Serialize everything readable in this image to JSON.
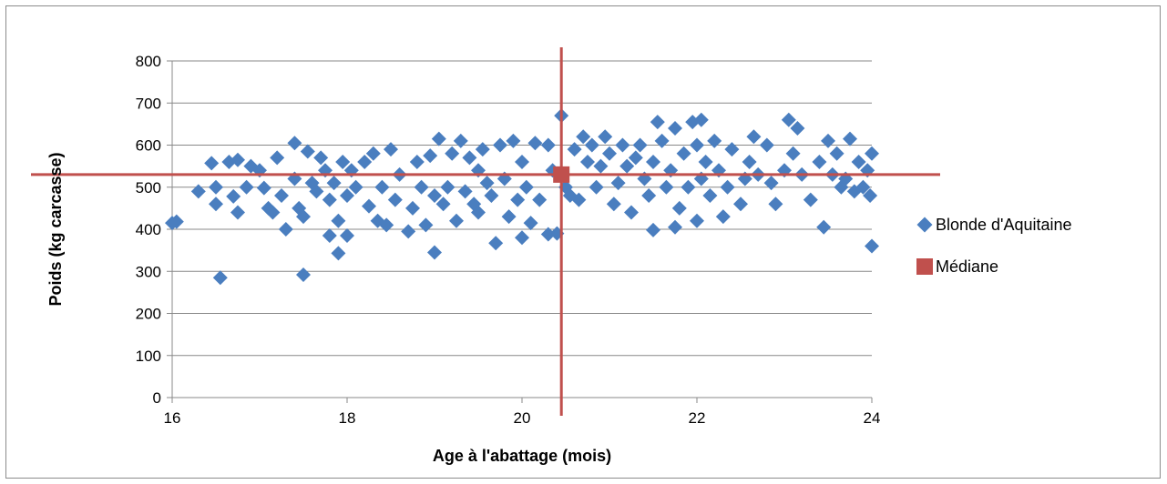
{
  "chart_data": {
    "type": "scatter",
    "title": "",
    "xlabel": "Age à l'abattage (mois)",
    "ylabel": "Poids (kg carcasse)",
    "xlim": [
      16,
      24
    ],
    "ylim": [
      0,
      800
    ],
    "x_ticks": [
      16,
      18,
      20,
      22,
      24
    ],
    "y_ticks": [
      0,
      100,
      200,
      300,
      400,
      500,
      600,
      700,
      800
    ],
    "grid": "horizontal",
    "legend_position": "right",
    "series": [
      {
        "name": "Blonde d'Aquitaine",
        "color": "#4a7ebf",
        "marker": "diamond",
        "points": [
          [
            16.0,
            415
          ],
          [
            16.05,
            418
          ],
          [
            16.3,
            490
          ],
          [
            16.45,
            557
          ],
          [
            16.5,
            500
          ],
          [
            16.5,
            460
          ],
          [
            16.55,
            285
          ],
          [
            16.65,
            560
          ],
          [
            16.7,
            478
          ],
          [
            16.75,
            565
          ],
          [
            16.75,
            440
          ],
          [
            16.85,
            500
          ],
          [
            16.9,
            550
          ],
          [
            17.0,
            540
          ],
          [
            17.05,
            498
          ],
          [
            17.1,
            450
          ],
          [
            17.15,
            440
          ],
          [
            17.2,
            570
          ],
          [
            17.25,
            480
          ],
          [
            17.3,
            400
          ],
          [
            17.4,
            520
          ],
          [
            17.4,
            605
          ],
          [
            17.45,
            450
          ],
          [
            17.5,
            430
          ],
          [
            17.5,
            292
          ],
          [
            17.55,
            585
          ],
          [
            17.6,
            510
          ],
          [
            17.65,
            490
          ],
          [
            17.7,
            570
          ],
          [
            17.75,
            540
          ],
          [
            17.8,
            385
          ],
          [
            17.8,
            470
          ],
          [
            17.85,
            510
          ],
          [
            17.9,
            420
          ],
          [
            17.9,
            343
          ],
          [
            17.95,
            560
          ],
          [
            18.0,
            480
          ],
          [
            18.0,
            385
          ],
          [
            18.05,
            540
          ],
          [
            18.1,
            500
          ],
          [
            18.2,
            560
          ],
          [
            18.25,
            455
          ],
          [
            18.3,
            580
          ],
          [
            18.35,
            420
          ],
          [
            18.4,
            500
          ],
          [
            18.45,
            410
          ],
          [
            18.5,
            590
          ],
          [
            18.55,
            470
          ],
          [
            18.6,
            530
          ],
          [
            18.7,
            395
          ],
          [
            18.75,
            450
          ],
          [
            18.8,
            560
          ],
          [
            18.85,
            500
          ],
          [
            18.9,
            410
          ],
          [
            18.95,
            575
          ],
          [
            19.0,
            480
          ],
          [
            19.0,
            345
          ],
          [
            19.05,
            615
          ],
          [
            19.1,
            460
          ],
          [
            19.15,
            500
          ],
          [
            19.2,
            580
          ],
          [
            19.25,
            420
          ],
          [
            19.3,
            610
          ],
          [
            19.35,
            490
          ],
          [
            19.4,
            570
          ],
          [
            19.45,
            460
          ],
          [
            19.5,
            540
          ],
          [
            19.5,
            440
          ],
          [
            19.55,
            590
          ],
          [
            19.6,
            510
          ],
          [
            19.65,
            480
          ],
          [
            19.7,
            367
          ],
          [
            19.75,
            600
          ],
          [
            19.8,
            520
          ],
          [
            19.85,
            430
          ],
          [
            19.9,
            610
          ],
          [
            19.95,
            470
          ],
          [
            20.0,
            560
          ],
          [
            20.0,
            380
          ],
          [
            20.05,
            500
          ],
          [
            20.1,
            415
          ],
          [
            20.15,
            605
          ],
          [
            20.2,
            470
          ],
          [
            20.3,
            600
          ],
          [
            20.3,
            388
          ],
          [
            20.35,
            540
          ],
          [
            20.4,
            390
          ],
          [
            20.45,
            670
          ],
          [
            20.5,
            500
          ],
          [
            20.55,
            480
          ],
          [
            20.6,
            590
          ],
          [
            20.65,
            470
          ],
          [
            20.7,
            620
          ],
          [
            20.75,
            560
          ],
          [
            20.8,
            600
          ],
          [
            20.85,
            500
          ],
          [
            20.9,
            550
          ],
          [
            20.95,
            620
          ],
          [
            21.0,
            580
          ],
          [
            21.05,
            460
          ],
          [
            21.1,
            510
          ],
          [
            21.15,
            600
          ],
          [
            21.2,
            550
          ],
          [
            21.25,
            440
          ],
          [
            21.3,
            570
          ],
          [
            21.35,
            600
          ],
          [
            21.4,
            520
          ],
          [
            21.45,
            480
          ],
          [
            21.5,
            560
          ],
          [
            21.5,
            398
          ],
          [
            21.6,
            610
          ],
          [
            21.65,
            500
          ],
          [
            21.7,
            540
          ],
          [
            21.75,
            640
          ],
          [
            21.8,
            450
          ],
          [
            21.85,
            580
          ],
          [
            21.9,
            500
          ],
          [
            21.95,
            655
          ],
          [
            22.0,
            600
          ],
          [
            22.0,
            420
          ],
          [
            22.05,
            520
          ],
          [
            22.1,
            560
          ],
          [
            22.15,
            480
          ],
          [
            22.2,
            610
          ],
          [
            22.25,
            540
          ],
          [
            22.3,
            430
          ],
          [
            22.35,
            500
          ],
          [
            22.4,
            590
          ],
          [
            22.5,
            460
          ],
          [
            22.55,
            520
          ],
          [
            22.6,
            560
          ],
          [
            22.65,
            620
          ],
          [
            22.7,
            530
          ],
          [
            22.8,
            600
          ],
          [
            22.85,
            510
          ],
          [
            22.9,
            460
          ],
          [
            23.0,
            540
          ],
          [
            23.05,
            660
          ],
          [
            23.1,
            580
          ],
          [
            23.15,
            640
          ],
          [
            23.2,
            530
          ],
          [
            23.3,
            470
          ],
          [
            23.4,
            560
          ],
          [
            23.45,
            405
          ],
          [
            23.5,
            610
          ],
          [
            23.55,
            530
          ],
          [
            23.6,
            580
          ],
          [
            23.65,
            500
          ],
          [
            23.7,
            520
          ],
          [
            23.75,
            615
          ],
          [
            23.8,
            490
          ],
          [
            23.85,
            560
          ],
          [
            23.9,
            500
          ],
          [
            23.95,
            540
          ],
          [
            24.0,
            580
          ],
          [
            24.0,
            360
          ],
          [
            23.98,
            480
          ],
          [
            21.55,
            655
          ],
          [
            22.05,
            660
          ],
          [
            21.75,
            405
          ]
        ]
      },
      {
        "name": "Médiane",
        "color": "#c0504d",
        "marker": "square",
        "points": [
          [
            20.45,
            530
          ]
        ]
      }
    ]
  }
}
